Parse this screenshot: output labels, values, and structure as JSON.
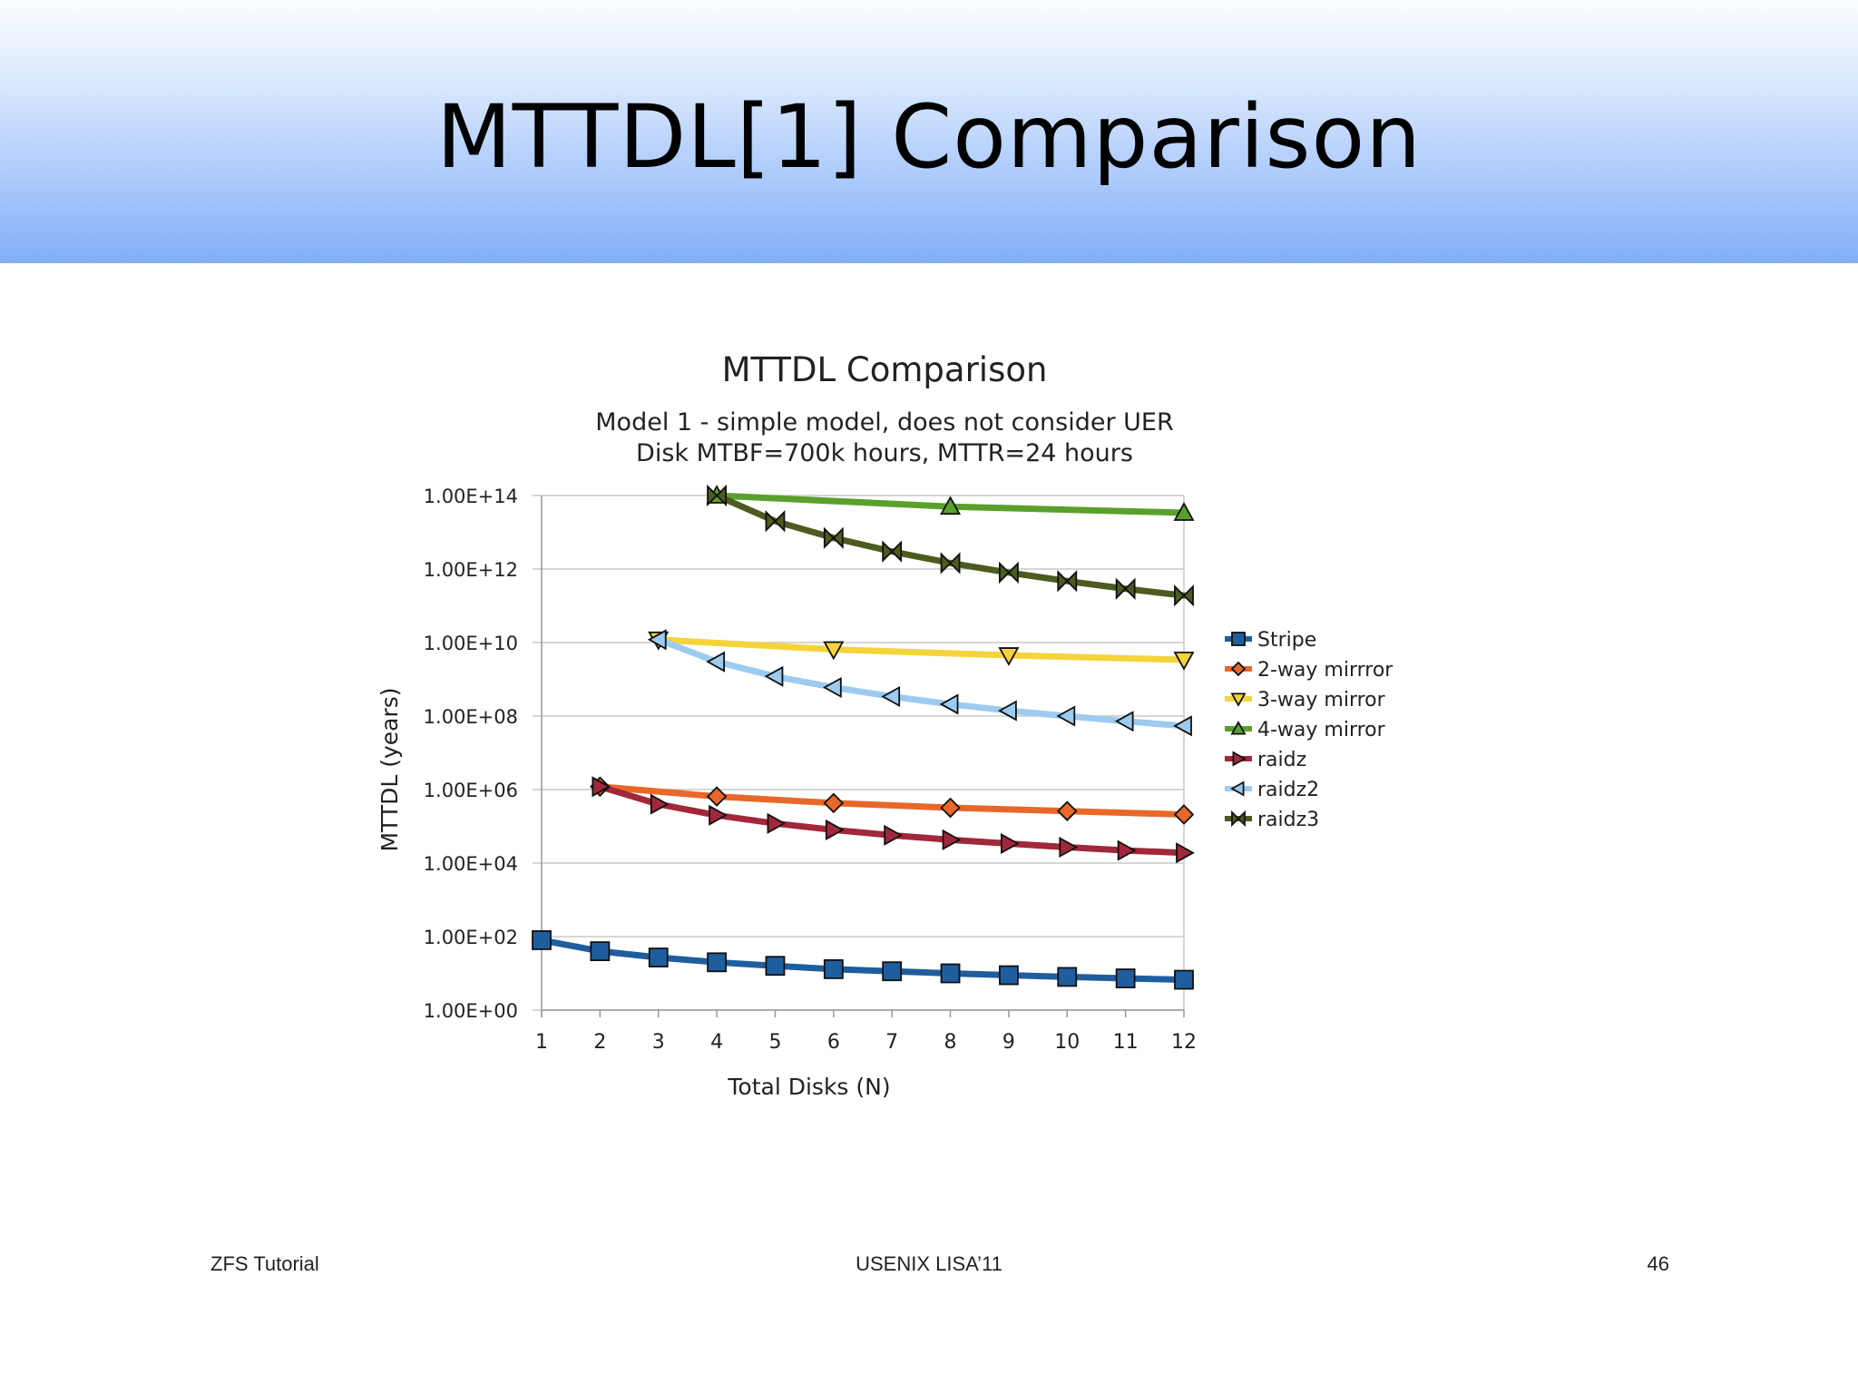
{
  "slide": {
    "title": "MTTDL[1] Comparison",
    "footer_left": "ZFS Tutorial",
    "footer_center": "USENIX LISA’11",
    "page_number": "46"
  },
  "chart_data": {
    "type": "line",
    "title": "MTTDL Comparison",
    "subtitle": [
      "Model 1 - simple model, does not consider UER",
      "Disk MTBF=700k hours, MTTR=24 hours"
    ],
    "xlabel": "Total Disks (N)",
    "ylabel": "MTTDL (years)",
    "y_scale": "log10",
    "ylim": [
      1,
      100000000000000
    ],
    "x_ticks": [
      1,
      2,
      3,
      4,
      5,
      6,
      7,
      8,
      9,
      10,
      11,
      12
    ],
    "y_ticks": [
      "1.00E+00",
      "1.00E+02",
      "1.00E+04",
      "1.00E+06",
      "1.00E+08",
      "1.00E+10",
      "1.00E+12",
      "1.00E+14"
    ],
    "legend_position": "right",
    "grid": "horizontal",
    "series": [
      {
        "name": "Stripe",
        "color": "#1f5e9e",
        "marker": "square",
        "x": [
          1,
          2,
          3,
          4,
          5,
          6,
          7,
          8,
          9,
          10,
          11,
          12
        ],
        "y": [
          80,
          40,
          27,
          20,
          16,
          13,
          11.4,
          10,
          8.9,
          8,
          7.3,
          6.7
        ]
      },
      {
        "name": "2-way mirrror",
        "color": "#e8682a",
        "marker": "diamond",
        "x": [
          2,
          4,
          6,
          8,
          10,
          12
        ],
        "y": [
          1200000,
          650000,
          430000,
          320000,
          260000,
          210000
        ]
      },
      {
        "name": "3-way mirror",
        "color": "#f5d33b",
        "marker": "triangle-down",
        "x": [
          3,
          6,
          9,
          12
        ],
        "y": [
          12000000000,
          6500000000,
          4500000000,
          3400000000
        ]
      },
      {
        "name": "4-way mirror",
        "color": "#5aa02c",
        "marker": "triangle-up",
        "x": [
          4,
          8,
          12
        ],
        "y": [
          100000000000000,
          50000000000000,
          34000000000000
        ]
      },
      {
        "name": "raidz",
        "color": "#a0283a",
        "marker": "triangle-right",
        "x": [
          2,
          3,
          4,
          5,
          6,
          7,
          8,
          9,
          10,
          11,
          12
        ],
        "y": [
          1200000,
          400000,
          200000,
          120000,
          80000,
          57000,
          43000,
          34000,
          27000,
          22000,
          19000
        ]
      },
      {
        "name": "raidz2",
        "color": "#9ccbef",
        "marker": "triangle-left",
        "x": [
          3,
          4,
          5,
          6,
          7,
          8,
          9,
          10,
          11,
          12
        ],
        "y": [
          12000000000,
          3000000000,
          1200000000,
          600000000,
          340000000,
          210000000,
          140000000,
          100000000,
          72000000,
          54000000
        ]
      },
      {
        "name": "raidz3",
        "color": "#4d5a20",
        "marker": "bowtie",
        "x": [
          4,
          5,
          6,
          7,
          8,
          9,
          10,
          11,
          12
        ],
        "y": [
          100000000000000,
          20000000000000,
          7000000000000,
          3000000000000,
          1450000000000,
          800000000000,
          470000000000,
          290000000000,
          190000000000
        ]
      }
    ]
  }
}
